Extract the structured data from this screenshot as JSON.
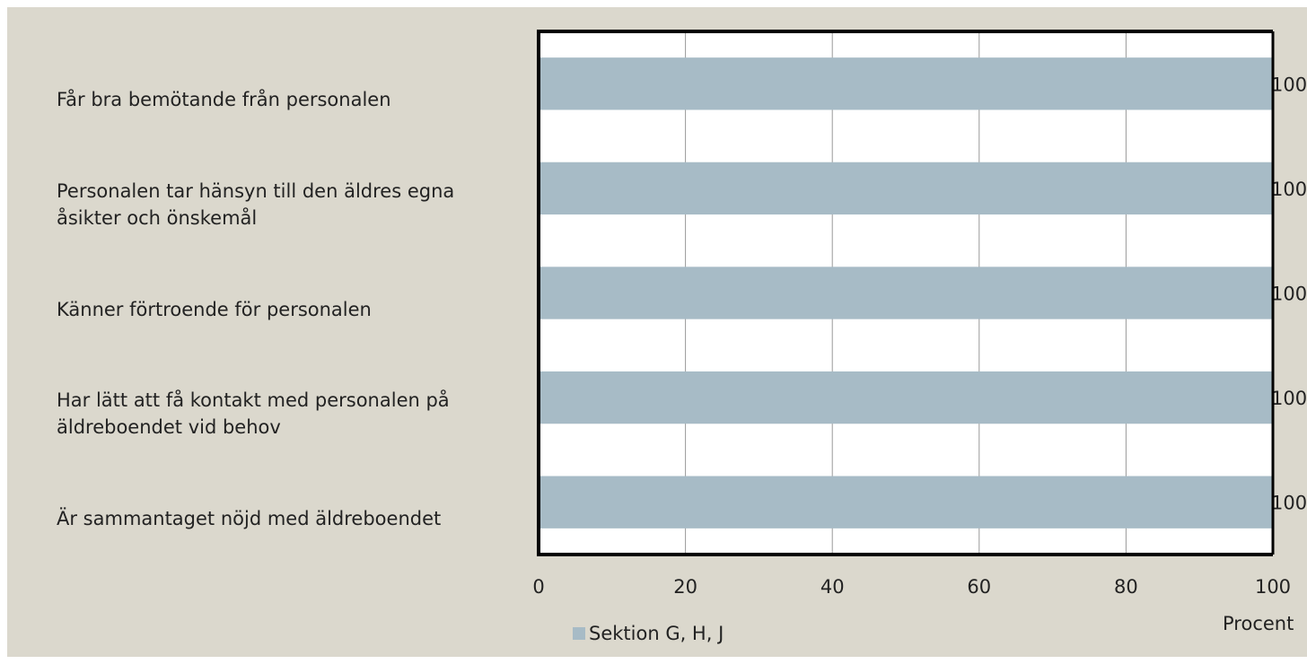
{
  "chart_data": {
    "type": "bar",
    "orientation": "horizontal",
    "categories": [
      "Får bra bemötande från personalen",
      "Personalen tar hänsyn till den äldres egna åsikter och önskemål",
      "Känner förtroende för personalen",
      "Har lätt att få kontakt med personalen på äldreboendet vid behov",
      "Är sammantaget nöjd med äldreboendet"
    ],
    "series": [
      {
        "name": "Sektion G, H, J",
        "color": "#a7bbc6",
        "values": [
          100,
          100,
          100,
          100,
          100
        ]
      }
    ],
    "xlim": [
      0,
      100
    ],
    "xticks": [
      0,
      20,
      40,
      60,
      80,
      100
    ],
    "xlabel": "Procent",
    "grid": true,
    "legend": "bottom"
  }
}
